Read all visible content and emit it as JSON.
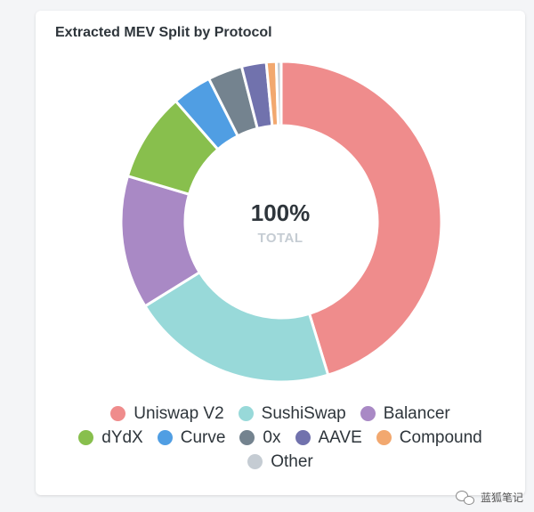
{
  "card": {
    "title": "Extracted MEV Split by Protocol"
  },
  "center": {
    "value": "100%",
    "label": "TOTAL"
  },
  "chart_data": {
    "type": "pie",
    "title": "Extracted MEV Split by Protocol",
    "donut": true,
    "legend_position": "bottom",
    "categories": [
      "Uniswap V2",
      "SushiSwap",
      "Balancer",
      "dYdX",
      "Curve",
      "0x",
      "AAVE",
      "Compound",
      "Other"
    ],
    "values": [
      45.5,
      21.0,
      13.5,
      9.0,
      4.0,
      3.5,
      2.5,
      1.0,
      0.5
    ],
    "colors": [
      "#ef8c8c",
      "#98d9d9",
      "#a989c5",
      "#88bf4d",
      "#509ee3",
      "#74838f",
      "#7172ad",
      "#f2a86f",
      "#c5ccd3"
    ]
  },
  "watermark": {
    "text": "蓝狐笔记",
    "icon": "wechat-icon"
  }
}
